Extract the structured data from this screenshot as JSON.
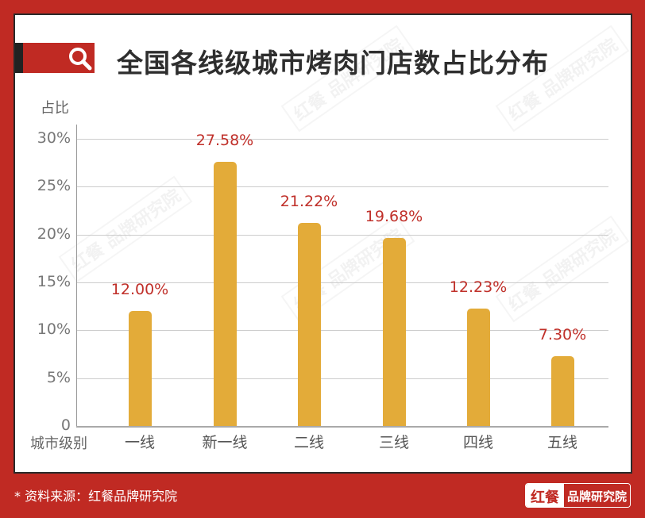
{
  "header": {
    "title": "全国各线级城市烤肉门店数占比分布",
    "icon": "search-icon"
  },
  "watermark": "红餐 品牌研究院",
  "chart_data": {
    "type": "bar",
    "title": "全国各线级城市烤肉门店数占比分布",
    "xlabel": "城市级别",
    "ylabel": "占比",
    "categories": [
      "一线",
      "新一线",
      "二线",
      "三线",
      "四线",
      "五线"
    ],
    "values": [
      12.0,
      27.58,
      21.22,
      19.68,
      12.23,
      7.3
    ],
    "value_labels": [
      "12.00%",
      "27.58%",
      "21.22%",
      "19.68%",
      "12.23%",
      "7.30%"
    ],
    "ylim": [
      0,
      30
    ],
    "yticks": [
      "0",
      "5%",
      "10%",
      "15%",
      "20%",
      "25%",
      "30%"
    ],
    "grid": true,
    "legend": null,
    "bar_color": "#e3ab39",
    "label_color": "#c0302a"
  },
  "footer": {
    "source_note": "* 资料来源：红餐品牌研究院",
    "logo_left": "红餐",
    "logo_right": "品牌研究院"
  },
  "colors": {
    "frame": "#c02a23",
    "title_text": "#2e2e2e"
  }
}
